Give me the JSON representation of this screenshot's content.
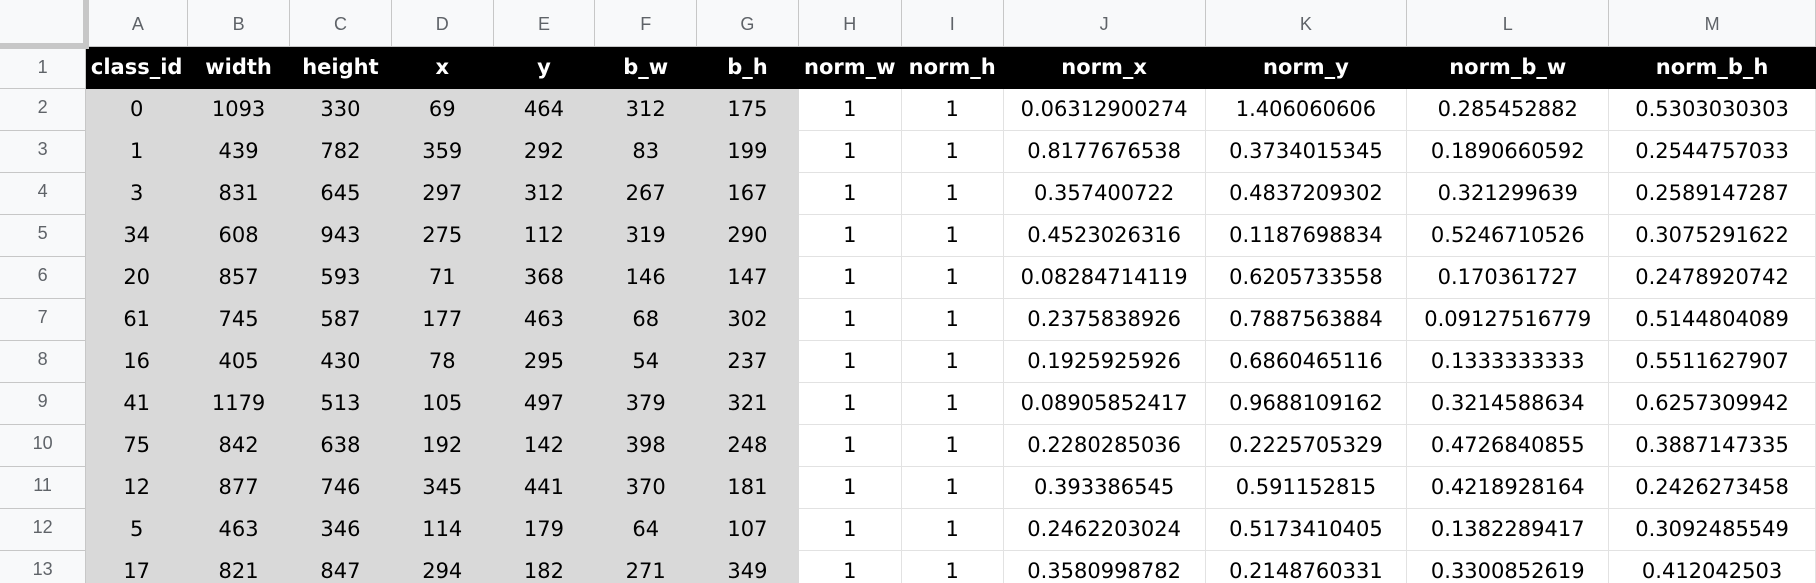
{
  "spreadsheet": {
    "columns": [
      "A",
      "B",
      "C",
      "D",
      "E",
      "F",
      "G",
      "H",
      "I",
      "J",
      "K",
      "L",
      "M"
    ],
    "header_row": {
      "row_number": "1",
      "cells": [
        "class_id",
        "width",
        "height",
        "x",
        "y",
        "b_w",
        "b_h",
        "norm_w",
        "norm_h",
        "norm_x",
        "norm_y",
        "norm_b_w",
        "norm_b_h"
      ]
    },
    "rows": [
      {
        "row_number": "2",
        "cells": [
          "0",
          "1093",
          "330",
          "69",
          "464",
          "312",
          "175",
          "1",
          "1",
          "0.06312900274",
          "1.406060606",
          "0.285452882",
          "0.5303030303"
        ]
      },
      {
        "row_number": "3",
        "cells": [
          "1",
          "439",
          "782",
          "359",
          "292",
          "83",
          "199",
          "1",
          "1",
          "0.8177676538",
          "0.3734015345",
          "0.1890660592",
          "0.2544757033"
        ]
      },
      {
        "row_number": "4",
        "cells": [
          "3",
          "831",
          "645",
          "297",
          "312",
          "267",
          "167",
          "1",
          "1",
          "0.357400722",
          "0.4837209302",
          "0.321299639",
          "0.2589147287"
        ]
      },
      {
        "row_number": "5",
        "cells": [
          "34",
          "608",
          "943",
          "275",
          "112",
          "319",
          "290",
          "1",
          "1",
          "0.4523026316",
          "0.1187698834",
          "0.5246710526",
          "0.3075291622"
        ]
      },
      {
        "row_number": "6",
        "cells": [
          "20",
          "857",
          "593",
          "71",
          "368",
          "146",
          "147",
          "1",
          "1",
          "0.08284714119",
          "0.6205733558",
          "0.170361727",
          "0.2478920742"
        ]
      },
      {
        "row_number": "7",
        "cells": [
          "61",
          "745",
          "587",
          "177",
          "463",
          "68",
          "302",
          "1",
          "1",
          "0.2375838926",
          "0.7887563884",
          "0.09127516779",
          "0.5144804089"
        ]
      },
      {
        "row_number": "8",
        "cells": [
          "16",
          "405",
          "430",
          "78",
          "295",
          "54",
          "237",
          "1",
          "1",
          "0.1925925926",
          "0.6860465116",
          "0.1333333333",
          "0.5511627907"
        ]
      },
      {
        "row_number": "9",
        "cells": [
          "41",
          "1179",
          "513",
          "105",
          "497",
          "379",
          "321",
          "1",
          "1",
          "0.08905852417",
          "0.9688109162",
          "0.3214588634",
          "0.6257309942"
        ]
      },
      {
        "row_number": "10",
        "cells": [
          "75",
          "842",
          "638",
          "192",
          "142",
          "398",
          "248",
          "1",
          "1",
          "0.2280285036",
          "0.2225705329",
          "0.4726840855",
          "0.3887147335"
        ]
      },
      {
        "row_number": "11",
        "cells": [
          "12",
          "877",
          "746",
          "345",
          "441",
          "370",
          "181",
          "1",
          "1",
          "0.393386545",
          "0.591152815",
          "0.4218928164",
          "0.2426273458"
        ]
      },
      {
        "row_number": "12",
        "cells": [
          "5",
          "463",
          "346",
          "114",
          "179",
          "64",
          "107",
          "1",
          "1",
          "0.2462203024",
          "0.5173410405",
          "0.1382289417",
          "0.3092485549"
        ]
      },
      {
        "row_number": "13",
        "cells": [
          "17",
          "821",
          "847",
          "294",
          "182",
          "271",
          "349",
          "1",
          "1",
          "0.3580998782",
          "0.2148760331",
          "0.3300852619",
          "0.412042503"
        ]
      }
    ]
  },
  "colors": {
    "header_fill": "#000000",
    "header_text": "#ffffff",
    "input_columns_fill": "#d9d9d9",
    "gridline": "#e2e2e2",
    "chrome_background": "#f8f9fa"
  }
}
